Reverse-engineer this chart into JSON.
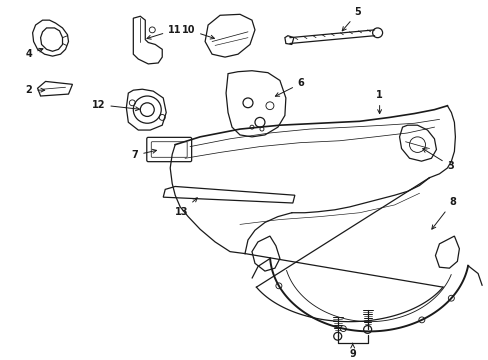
{
  "bg_color": "#ffffff",
  "line_color": "#1a1a1a",
  "lw": 0.9,
  "figsize": [
    4.89,
    3.6
  ],
  "dpi": 100
}
